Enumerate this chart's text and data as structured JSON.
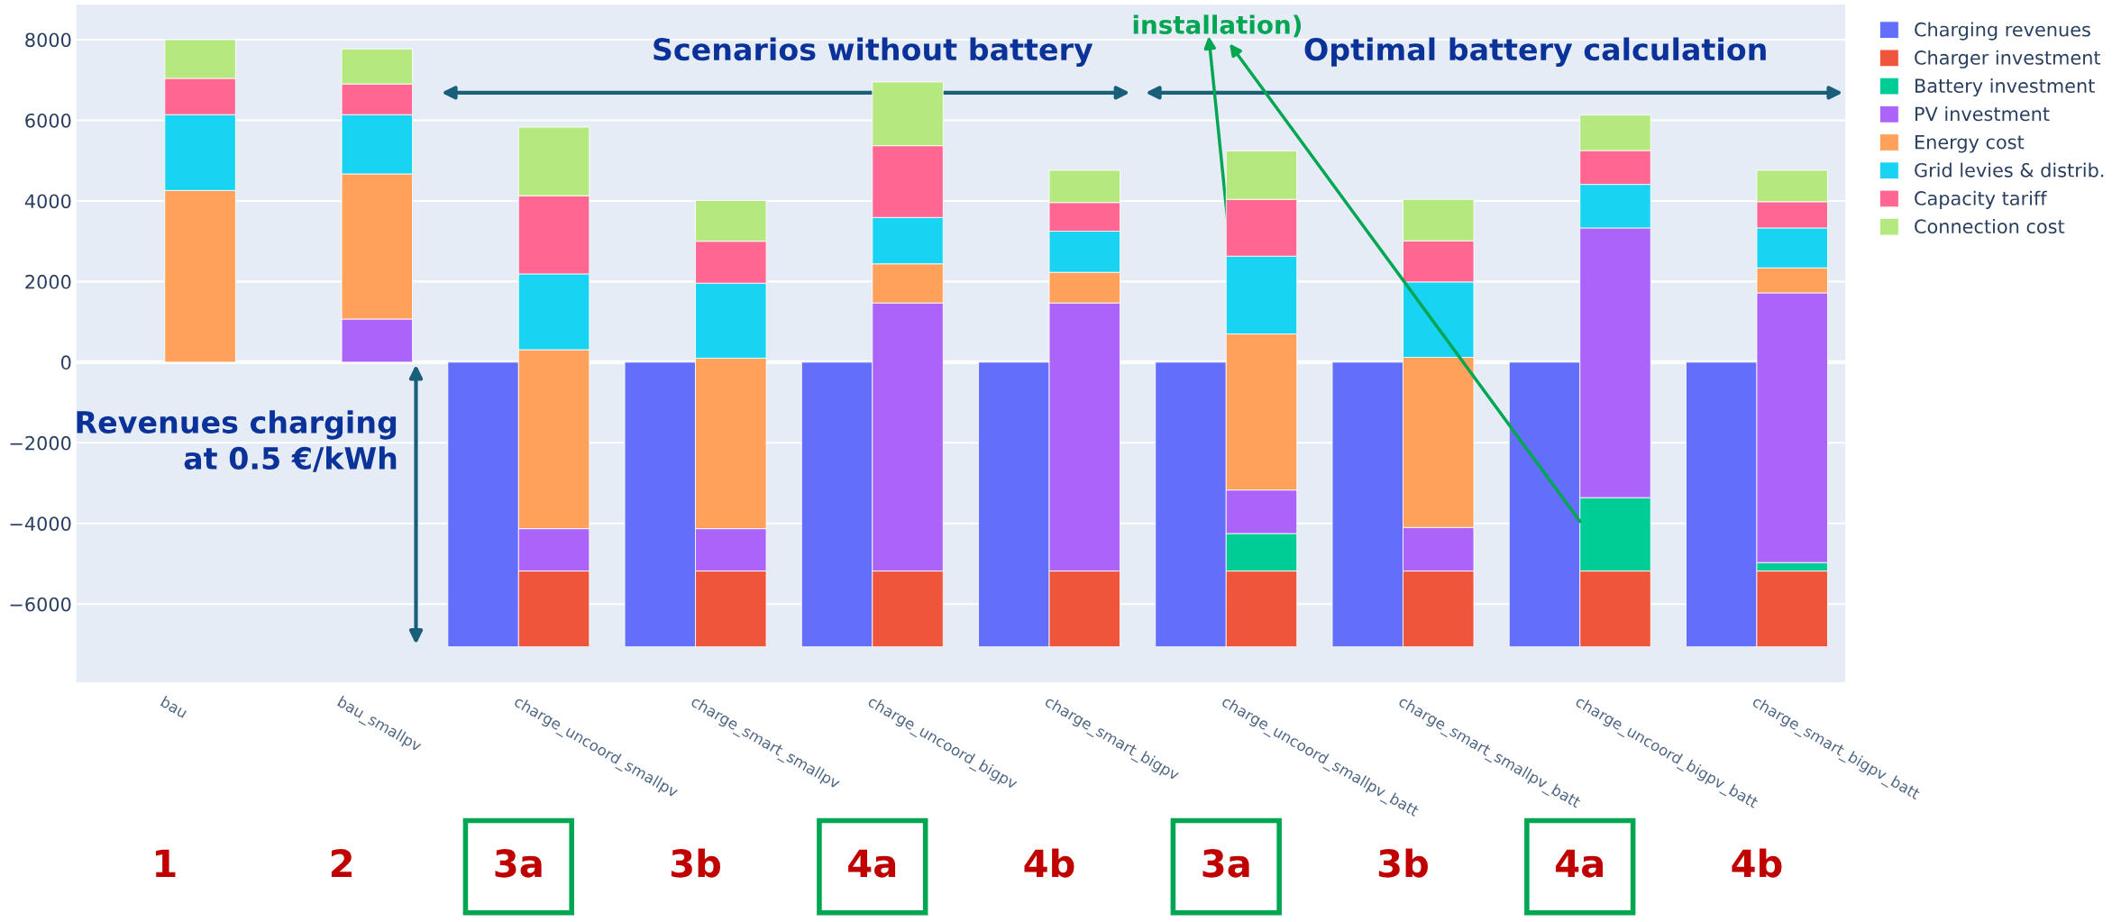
{
  "chart_data": {
    "type": "bar",
    "categories": [
      "bau",
      "bau_smallpv",
      "charge_uncoord_smallpv",
      "charge_smart_smallpv",
      "charge_uncoord_bigpv",
      "charge_smart_bigpv",
      "charge_uncoord_smallpv_batt",
      "charge_smart_smallpv_batt",
      "charge_uncoord_bigpv_batt",
      "charge_smart_bigpv_batt"
    ],
    "series": [
      {
        "name": "Charging revenues",
        "color": "#636efa",
        "values": [
          null,
          null,
          -7060,
          -7060,
          -7060,
          -7060,
          -7060,
          -7060,
          -7060,
          -7060
        ]
      },
      {
        "name": "Charger investment",
        "color": "#ef553b",
        "base": [
          null,
          null,
          -7060,
          -7060,
          -7060,
          -7060,
          -7060,
          -7060,
          -7060,
          -7060
        ],
        "values": [
          null,
          null,
          1880,
          1880,
          1880,
          1880,
          1880,
          1880,
          1880,
          1880
        ]
      },
      {
        "name": "Battery investment",
        "color": "#00cc96",
        "base": [
          null,
          null,
          null,
          null,
          null,
          null,
          -5180,
          null,
          -5180,
          -5180
        ],
        "values": [
          null,
          null,
          null,
          null,
          null,
          null,
          930,
          null,
          1820,
          210
        ]
      },
      {
        "name": "PV investment",
        "color": "#ab63fa",
        "base": [
          null,
          0,
          -5180,
          -5180,
          -5180,
          -5180,
          -4250,
          -5180,
          -3360,
          -4970
        ],
        "values": [
          null,
          1070,
          1050,
          1050,
          6650,
          6650,
          1080,
          1080,
          6690,
          6690
        ]
      },
      {
        "name": "Energy cost",
        "color": "#ffa15a",
        "base": [
          0,
          1070,
          -4130,
          -4130,
          1470,
          1470,
          -3170,
          -4100,
          null,
          1720
        ],
        "values": [
          4260,
          3600,
          4440,
          4230,
          970,
          760,
          3870,
          4220,
          null,
          620
        ]
      },
      {
        "name": "Grid levies & distrib.",
        "color": "#19d3f3",
        "base": [
          4260,
          4670,
          310,
          100,
          2440,
          2230,
          700,
          120,
          3330,
          2340
        ],
        "values": [
          1880,
          1470,
          1880,
          1860,
          1150,
          1020,
          1930,
          1870,
          1080,
          990
        ]
      },
      {
        "name": "Capacity tariff",
        "color": "#ff6692",
        "base": [
          6140,
          6140,
          2190,
          1960,
          3590,
          3250,
          2630,
          1990,
          4410,
          3330
        ],
        "values": [
          900,
          760,
          1940,
          1040,
          1780,
          710,
          1410,
          1020,
          840,
          650
        ]
      },
      {
        "name": "Connection cost",
        "color": "#b6e880",
        "base": [
          7040,
          6900,
          4130,
          3000,
          5370,
          3960,
          4040,
          3010,
          5250,
          3980
        ],
        "values": [
          960,
          870,
          1700,
          1010,
          1580,
          800,
          1200,
          1030,
          880,
          780
        ]
      }
    ],
    "ylim": [
      -7940,
      8870
    ],
    "yticks": [
      {
        "value": -6000,
        "label": "−6000"
      },
      {
        "value": -4000,
        "label": "−4000"
      },
      {
        "value": -2000,
        "label": "−2000"
      },
      0,
      2000,
      4000,
      6000,
      8000
    ],
    "grid": "y",
    "legend": "top right",
    "annotations": [
      "Scenarios without battery",
      "Optimal battery calculation",
      "Revenues charging\nat 0.5 €/kWh",
      {
        "text": "installation)",
        "x": "charge_uncoord_bigpv_batt",
        "y": -3950
      },
      "1",
      "2",
      "3a",
      "3b",
      "4a",
      "4b",
      "3a",
      "3b",
      "4a",
      "4b"
    ]
  }
}
